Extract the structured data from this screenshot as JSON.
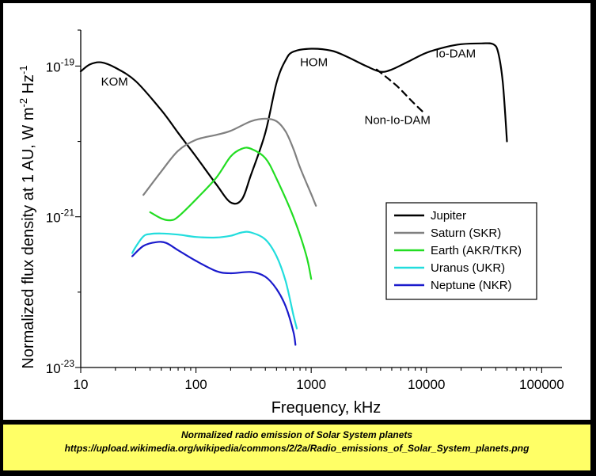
{
  "chart_data": {
    "type": "line",
    "title": "",
    "xlabel": "Frequency, kHz",
    "ylabel_parts": [
      "Normalized flux density at 1 AU, W m",
      "-2",
      " Hz",
      "-1"
    ],
    "xscale": "log",
    "yscale": "log",
    "xlim": [
      10,
      150000
    ],
    "ylim": [
      1e-23,
      3e-19
    ],
    "x_ticks": [
      {
        "value": 10,
        "label": "10"
      },
      {
        "value": 100,
        "label": "100"
      },
      {
        "value": 1000,
        "label": "1000"
      },
      {
        "value": 10000,
        "label": "10000"
      },
      {
        "value": 100000,
        "label": "100000"
      }
    ],
    "y_ticks": [
      {
        "value": 1e-23,
        "base": "10",
        "exp": "-23"
      },
      {
        "value": 1e-21,
        "base": "10",
        "exp": "-21"
      },
      {
        "value": 1e-19,
        "base": "10",
        "exp": "-19"
      }
    ],
    "grid": false,
    "legend_position": "right",
    "series": [
      {
        "name": "Jupiter",
        "color": "#000000",
        "dash": "none",
        "points": [
          [
            10,
            8.5e-20
          ],
          [
            12,
            1.05e-19
          ],
          [
            15,
            1.12e-19
          ],
          [
            20,
            9.5e-20
          ],
          [
            30,
            6.3e-20
          ],
          [
            50,
            2.6e-20
          ],
          [
            70,
            1.3e-20
          ],
          [
            100,
            6.3e-21
          ],
          [
            150,
            2.7e-21
          ],
          [
            200,
            1.55e-21
          ],
          [
            250,
            1.7e-21
          ],
          [
            300,
            3.6e-21
          ],
          [
            400,
            1.3e-20
          ],
          [
            500,
            6e-20
          ],
          [
            600,
            1.2e-19
          ],
          [
            700,
            1.55e-19
          ],
          [
            1000,
            1.7e-19
          ],
          [
            1500,
            1.6e-19
          ],
          [
            2000,
            1.35e-19
          ],
          [
            3000,
            1e-19
          ],
          [
            4000,
            8.4e-20
          ],
          [
            5000,
            9e-20
          ],
          [
            7000,
            1.15e-19
          ],
          [
            10000,
            1.5e-19
          ],
          [
            15000,
            1.8e-19
          ],
          [
            20000,
            1.95e-19
          ],
          [
            30000,
            2e-19
          ],
          [
            38000,
            1.95e-19
          ],
          [
            42000,
            1.5e-19
          ],
          [
            46000,
            6e-20
          ],
          [
            50000,
            1e-20
          ]
        ]
      },
      {
        "name": "Saturn (SKR)",
        "color": "#808080",
        "dash": "none",
        "points": [
          [
            35,
            1.95e-21
          ],
          [
            50,
            4e-21
          ],
          [
            70,
            7.5e-21
          ],
          [
            100,
            1.05e-20
          ],
          [
            150,
            1.22e-20
          ],
          [
            200,
            1.38e-20
          ],
          [
            300,
            1.85e-20
          ],
          [
            400,
            2e-20
          ],
          [
            500,
            1.85e-20
          ],
          [
            600,
            1.35e-20
          ],
          [
            700,
            8e-21
          ],
          [
            800,
            4.5e-21
          ],
          [
            1000,
            2e-21
          ],
          [
            1100,
            1.4e-21
          ]
        ]
      },
      {
        "name": "Earth (AKR/TKR)",
        "color": "#22dd22",
        "dash": "none",
        "points": [
          [
            40,
            1.15e-21
          ],
          [
            50,
            9.5e-22
          ],
          [
            60,
            9e-22
          ],
          [
            70,
            1e-21
          ],
          [
            100,
            1.7e-21
          ],
          [
            150,
            3.3e-21
          ],
          [
            200,
            6.3e-21
          ],
          [
            250,
            8e-21
          ],
          [
            300,
            8e-21
          ],
          [
            400,
            6e-21
          ],
          [
            500,
            3.2e-21
          ],
          [
            700,
            1e-21
          ],
          [
            900,
            3.2e-22
          ],
          [
            1000,
            1.5e-22
          ]
        ]
      },
      {
        "name": "Uranus (UKR)",
        "color": "#22dddd",
        "dash": "none",
        "points": [
          [
            28,
            3.3e-22
          ],
          [
            30,
            4e-22
          ],
          [
            35,
            5.5e-22
          ],
          [
            40,
            5.9e-22
          ],
          [
            50,
            6e-22
          ],
          [
            70,
            5.8e-22
          ],
          [
            100,
            5.4e-22
          ],
          [
            150,
            5.3e-22
          ],
          [
            200,
            5.6e-22
          ],
          [
            250,
            6.2e-22
          ],
          [
            300,
            6.2e-22
          ],
          [
            400,
            5e-22
          ],
          [
            500,
            3e-22
          ],
          [
            600,
            1.4e-22
          ],
          [
            700,
            5e-23
          ],
          [
            750,
            3.3e-23
          ]
        ]
      },
      {
        "name": "Neptune (NKR)",
        "color": "#1a1acc",
        "dash": "none",
        "points": [
          [
            28,
            3e-22
          ],
          [
            35,
            4.1e-22
          ],
          [
            45,
            4.6e-22
          ],
          [
            55,
            4.5e-22
          ],
          [
            70,
            3.6e-22
          ],
          [
            100,
            2.6e-22
          ],
          [
            150,
            1.9e-22
          ],
          [
            200,
            1.78e-22
          ],
          [
            300,
            1.85e-22
          ],
          [
            400,
            1.6e-22
          ],
          [
            500,
            1.1e-22
          ],
          [
            600,
            6.5e-23
          ],
          [
            700,
            3e-23
          ],
          [
            730,
            2e-23
          ]
        ]
      },
      {
        "name": "Non-Io-DAM",
        "color": "#000000",
        "dash": "8,6",
        "in_legend": false,
        "points": [
          [
            3700,
            9e-20
          ],
          [
            5500,
            5.5e-20
          ],
          [
            7500,
            3.4e-20
          ],
          [
            9500,
            2.4e-20
          ]
        ]
      }
    ],
    "annotations": [
      {
        "text": "KOM",
        "x": 15,
        "y": 5.5e-20
      },
      {
        "text": "HOM",
        "x": 800,
        "y": 1e-19
      },
      {
        "text": "Io-DAM",
        "x": 12000,
        "y": 1.3e-19
      },
      {
        "text": "Non-Io-DAM",
        "x": 2900,
        "y": 1.7e-20
      }
    ]
  },
  "caption": {
    "title": "Normalized radio emission of Solar System planets",
    "url": "https://upload.wikimedia.org/wikipedia/commons/2/2a/Radio_emissions_of_Solar_System_planets.png"
  }
}
